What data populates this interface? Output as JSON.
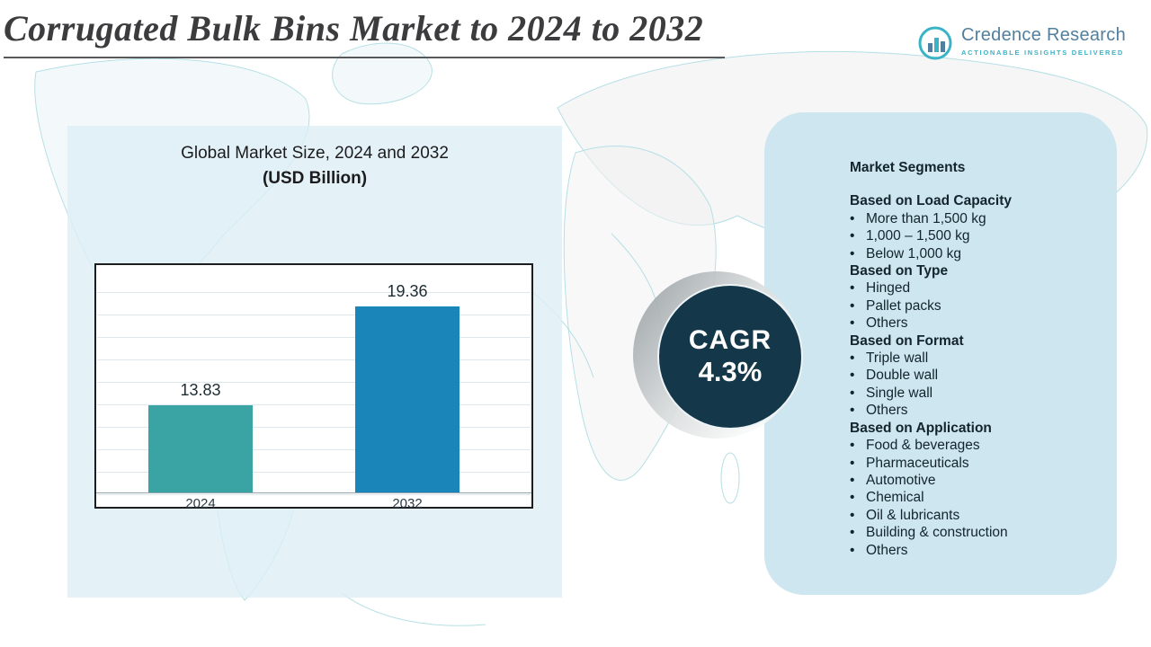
{
  "header": {
    "title": "Corrugated Bulk Bins Market to 2024 to 2032"
  },
  "logo": {
    "name": "Credence Research",
    "tagline": "Actionable Insights Delivered"
  },
  "chart": {
    "title_line1": "Global Market Size, 2024 and 2032",
    "title_line2": "(USD Billion)"
  },
  "chart_data": {
    "type": "bar",
    "title": "Global Market Size, 2024 and 2032 (USD Billion)",
    "categories": [
      "2024",
      "2032"
    ],
    "values": [
      13.83,
      19.36
    ],
    "xlabel": "",
    "ylabel": "",
    "ylim": [
      9,
      20.5
    ],
    "grid": true,
    "legend": false,
    "bar_colors": [
      "#3aa4a4",
      "#1a85b8"
    ]
  },
  "cagr": {
    "label": "CAGR",
    "value": "4.3%"
  },
  "segments": {
    "title": "Market Segments",
    "groups": [
      {
        "heading": "Based on Load Capacity",
        "items": [
          "More than 1,500 kg",
          "1,000 – 1,500 kg",
          "Below 1,000 kg"
        ]
      },
      {
        "heading": "Based on Type",
        "items": [
          "Hinged",
          "Pallet packs",
          "Others"
        ]
      },
      {
        "heading": "Based on Format",
        "items": [
          "Triple wall",
          "Double wall",
          "Single wall",
          "Others"
        ]
      },
      {
        "heading": "Based on Application",
        "items": [
          "Food & beverages",
          "Pharmaceuticals",
          "Automotive",
          "Chemical",
          "Oil & lubricants",
          "Building & construction",
          "Others"
        ]
      }
    ]
  },
  "colors": {
    "panel_blue": "#cde6ef",
    "left_panel_blue": "#ddeef6",
    "cagr_navy": "#14384a",
    "bar_teal": "#3aa4a4",
    "bar_blue": "#1a85b8",
    "map_line_teal": "#a9dae1",
    "logo_blue": "#527f9e",
    "logo_teal": "#3ab3c6"
  }
}
